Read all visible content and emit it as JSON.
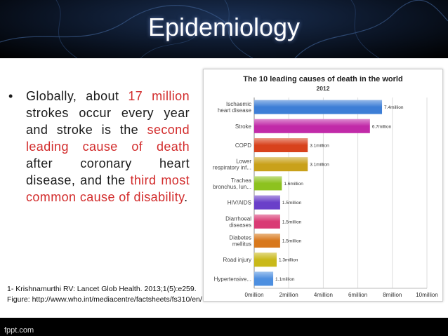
{
  "slide": {
    "title": "Epidemiology",
    "bullet_parts": [
      {
        "text": "Globally, about ",
        "accent": false
      },
      {
        "text": "17 million",
        "accent": true
      },
      {
        "text": " strokes occur every year and stroke is the ",
        "accent": false
      },
      {
        "text": "second leading cause of death",
        "accent": true
      },
      {
        "text": " after coronary heart disease, and the ",
        "accent": false
      },
      {
        "text": "third most common cause of disability",
        "accent": true
      },
      {
        "text": ".",
        "accent": false
      }
    ],
    "reference_1": "1- Krishnamurthi RV: Lancet Glob Health. 2013;1(5):e259.",
    "reference_2": "Figure: http://www.who.int/mediacentre/factsheets/fs310/en/",
    "brand": "fppt.com",
    "accent_color": "#d22b2b"
  },
  "chart_data": {
    "type": "bar",
    "orientation": "horizontal",
    "title": "The 10 leading causes of death in the world",
    "subtitle": "2012",
    "categories": [
      [
        "Ischaemic",
        "heart disease"
      ],
      [
        "Stroke"
      ],
      [
        "COPD"
      ],
      [
        "Lower",
        "respiratory inf..."
      ],
      [
        "Trachea",
        "bronchus, lun..."
      ],
      [
        "HIV/AIDS"
      ],
      [
        "Diarrhoeal",
        "diseases"
      ],
      [
        "Diabetes",
        "mellitus"
      ],
      [
        "Road injury"
      ],
      [
        "Hypertensive..."
      ]
    ],
    "values": [
      7.4,
      6.7,
      3.1,
      3.1,
      1.6,
      1.5,
      1.5,
      1.5,
      1.3,
      1.1
    ],
    "value_labels": [
      "7.4million",
      "6.7million",
      "3.1million",
      "3.1million",
      "1.6million",
      "1.5million",
      "1.5million",
      "1.5million",
      "1.3million",
      "1.1million"
    ],
    "colors": [
      "#3d7ed6",
      "#c12aa8",
      "#d8421c",
      "#c9a11a",
      "#8dc21f",
      "#6a3fc9",
      "#d93a74",
      "#d8781c",
      "#c9b91a",
      "#4d8fe0"
    ],
    "xticks": [
      0,
      2,
      4,
      6,
      8,
      10
    ],
    "xtick_labels": [
      "0million",
      "2million",
      "4million",
      "6million",
      "8million",
      "10million"
    ],
    "xlim": [
      0,
      10
    ],
    "grid": true
  }
}
